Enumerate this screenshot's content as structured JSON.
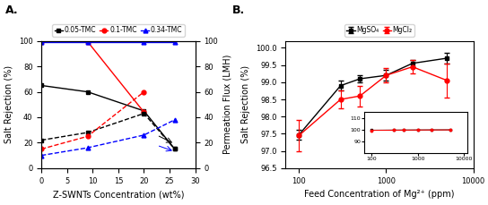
{
  "chart_data": [
    {
      "type": "line",
      "title": "A.",
      "x_label": "Z-SWNTs Concentration (wt%)",
      "y_label": "Salt Rejection (%)",
      "y2_label": "Permeation Flux (LMH)",
      "xlim": [
        0,
        30
      ],
      "ylim": [
        0,
        100
      ],
      "y2lim": [
        0,
        100
      ],
      "xticks": [
        0,
        5,
        10,
        15,
        20,
        25,
        30
      ],
      "yticks": [
        0,
        20,
        40,
        60,
        80,
        100
      ],
      "y2ticks": [
        0,
        20,
        40,
        60,
        80,
        100
      ],
      "legend": "above",
      "series": [
        {
          "name": "0.05-TMC",
          "color": "black",
          "marker": "s",
          "line_style": "solid",
          "x": [
            0,
            9,
            20,
            26
          ],
          "values": [
            65,
            60,
            45,
            15
          ]
        },
        {
          "name": "0.1-TMC",
          "color": "red",
          "marker": "o",
          "line_style": "solid",
          "x": [
            0,
            9,
            20
          ],
          "values": [
            99.5,
            99.5,
            44
          ]
        },
        {
          "name": "0.34-TMC",
          "color": "blue",
          "marker": "^",
          "line_style": "solid",
          "x": [
            0,
            9,
            20,
            26
          ],
          "values": [
            99.5,
            99.5,
            99.5,
            99.5
          ]
        },
        {
          "axis": "y2",
          "color": "black",
          "marker": "s",
          "line_style": "dashed",
          "x": [
            0,
            9,
            20,
            26
          ],
          "values": [
            22,
            28,
            43,
            15
          ]
        },
        {
          "axis": "y2",
          "color": "red",
          "marker": "o",
          "line_style": "dashed",
          "x": [
            0,
            9,
            20
          ],
          "values": [
            15,
            25,
            60
          ]
        },
        {
          "axis": "y2",
          "color": "blue",
          "marker": "^",
          "line_style": "dashed",
          "x": [
            0,
            9,
            20,
            26
          ],
          "values": [
            10,
            16,
            26,
            38
          ]
        }
      ],
      "annotations": [
        {
          "x_from": 22.5,
          "y_from": 26,
          "x": 26,
          "y": 19,
          "color": "black"
        },
        {
          "x_from": 22.5,
          "y_from": 18,
          "x": 26,
          "y": 13,
          "color": "blue"
        }
      ]
    },
    {
      "type": "line",
      "title": "B.",
      "x_label": "Feed Concentration of Mg²⁺ (ppm)",
      "y_label": "Salt Rejection (%)",
      "log": "x",
      "xlim": [
        70,
        10000
      ],
      "ylim": [
        96.5,
        100.2
      ],
      "xticks": [
        100,
        1000,
        10000
      ],
      "yticks": [
        96.5,
        {
          "value": 97.0,
          "label": "97.0"
        },
        97.5,
        {
          "value": 98.0,
          "label": "98.0"
        },
        98.5,
        {
          "value": 99.0,
          "label": "99.0"
        },
        99.5,
        {
          "value": 100.0,
          "label": "100.0"
        }
      ],
      "legend": "above",
      "series": [
        {
          "name": "MgSO₄",
          "color": "black",
          "marker": "s",
          "line_style": "solid",
          "x": [
            100,
            300,
            500,
            1000,
            2000,
            5000
          ],
          "values": [
            97.47,
            98.9,
            99.1,
            99.2,
            99.55,
            99.7
          ],
          "yerr": [
            0.15,
            0.15,
            0.1,
            0.15,
            0.1,
            0.15
          ]
        },
        {
          "name": "MgCl₂",
          "color": "red",
          "marker": "o",
          "line_style": "solid",
          "x": [
            100,
            300,
            500,
            1000,
            2000,
            5000
          ],
          "values": [
            97.45,
            98.5,
            98.6,
            99.2,
            99.45,
            99.05
          ],
          "yerr": [
            0.45,
            0.25,
            0.3,
            0.2,
            0.2,
            0.5
          ]
        }
      ],
      "inset": {
        "type": "line",
        "log": "x",
        "xlim": [
          70,
          12000
        ],
        "ylim": [
          80,
          115
        ],
        "xticks": [
          100,
          1000,
          10000
        ],
        "yticks": [
          90,
          100,
          110
        ],
        "series": [
          {
            "color": "black",
            "marker": "s",
            "line_style": "solid",
            "x": [
              100,
              300,
              500,
              1000,
              2000,
              5000
            ],
            "values": [
              99.5,
              99.6,
              99.65,
              99.7,
              99.75,
              99.8
            ]
          },
          {
            "color": "red",
            "marker": "o",
            "line_style": "solid",
            "x": [
              100,
              300,
              500,
              1000,
              2000,
              5000
            ],
            "values": [
              99.4,
              99.5,
              99.55,
              99.65,
              99.7,
              99.75
            ]
          }
        ]
      }
    }
  ]
}
